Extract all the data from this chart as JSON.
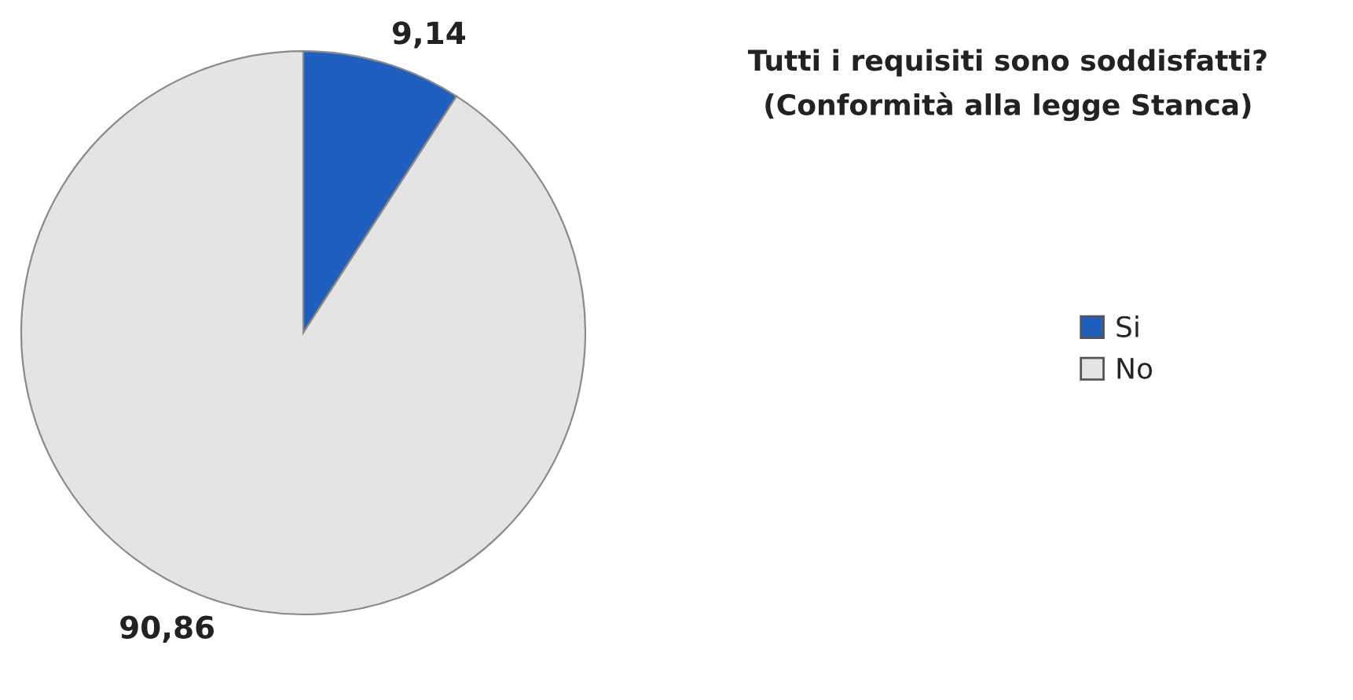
{
  "chart_data": {
    "type": "pie",
    "title": "Tutti i requisiti sono soddisfatti?\n(Conformità alla legge Stanca)",
    "categories": [
      "Si",
      "No"
    ],
    "values": [
      9.14,
      90.86
    ],
    "colors": [
      "#1f5fbf",
      "#e4e4e4"
    ],
    "value_labels": [
      "9,14",
      "90,86"
    ],
    "legend": "right"
  }
}
